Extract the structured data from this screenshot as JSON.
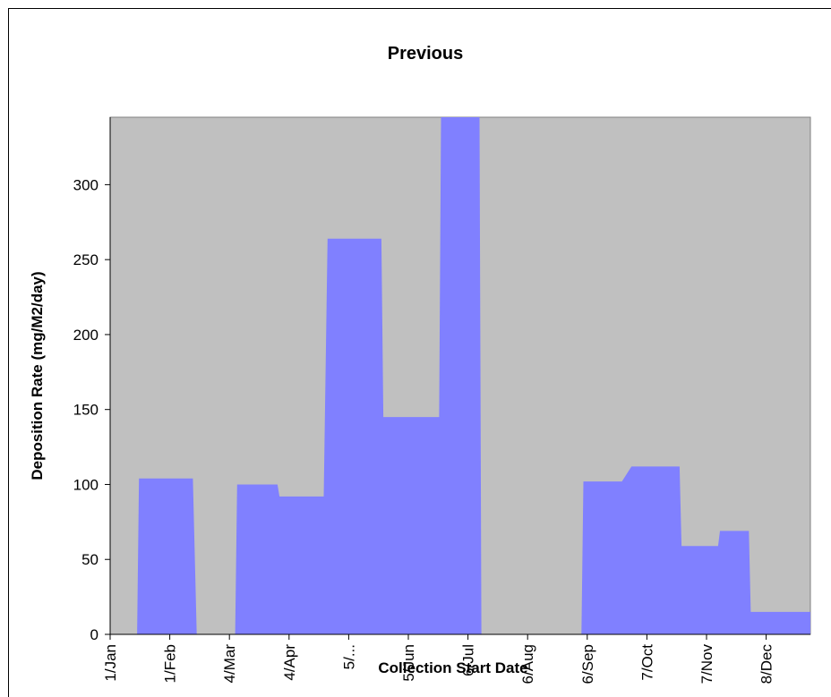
{
  "chart_data": {
    "type": "area",
    "title": "Previous",
    "xlabel": "Collection  Start Date",
    "ylabel": "Deposition  Rate (mg/M2/day)",
    "ylim": [
      0,
      345
    ],
    "yticks": [
      0,
      50,
      100,
      150,
      200,
      250,
      300
    ],
    "xlim": [
      "1/Jan",
      "31/Dec"
    ],
    "x_tick_labels": [
      "1/Jan",
      "1/Feb",
      "4/Mar",
      "4/Apr",
      "5/...",
      "5/Jun",
      "6/Jul",
      "6/Aug",
      "6/Sep",
      "7/Oct",
      "7/Nov",
      "8/Dec"
    ],
    "x_tick_dates": [
      "1/Jan",
      "1/Feb",
      "4/Mar",
      "4/Apr",
      "5/May",
      "5/Jun",
      "6/Jul",
      "6/Aug",
      "6/Sep",
      "7/Oct",
      "7/Nov",
      "8/Dec"
    ],
    "grid": false,
    "legend": "none",
    "colors": {
      "plot_background": "#c0c0c0",
      "fill": "#8080ff",
      "plot_border": "#808080"
    },
    "series": [
      {
        "x": [
          "15/Jan",
          "16/Jan",
          "13/Feb",
          "15/Feb",
          "7/Mar",
          "8/Mar",
          "29/Mar",
          "30/Mar",
          "22/Apr",
          "24/Apr",
          "22/May",
          "23/May",
          "21/Jun",
          "22/Jun",
          "12/Jul",
          "13/Jul",
          "6/Aug",
          "7/Aug",
          "3/Sep",
          "4/Sep",
          "24/Sep",
          "29/Sep",
          "24/Oct",
          "25/Oct",
          "13/Nov",
          "14/Nov",
          "29/Nov",
          "30/Nov",
          "21/Dec",
          "22/Dec",
          "31/Dec"
        ],
        "y": [
          0,
          104,
          104,
          0,
          0,
          100,
          100,
          92,
          92,
          264,
          264,
          145,
          145,
          345,
          345,
          0,
          0,
          0,
          0,
          102,
          102,
          112,
          112,
          59,
          59,
          69,
          69,
          15,
          15,
          15,
          15
        ]
      }
    ]
  }
}
